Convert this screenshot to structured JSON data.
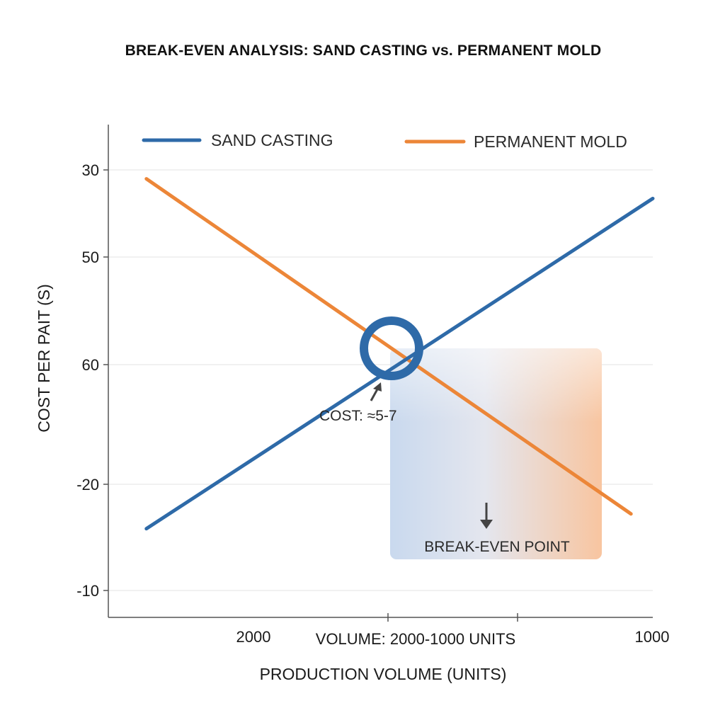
{
  "chart_data": {
    "type": "line",
    "title": "BREAK-EVEN ANALYSIS: SAND CASTING vs. PERMANENT MOLD",
    "xlabel": "PRODUCTION VOLUME (UNITS)",
    "ylabel": "COST PER PAIT (S)",
    "y_tick_labels": [
      "30",
      "50",
      "60",
      "-20",
      "-10"
    ],
    "x_tick_labels": [
      "2000",
      "1000"
    ],
    "x_center_label": "VOLUME: 2000-1000 UNITS",
    "grid": true,
    "legend_position": "top",
    "series": [
      {
        "name": "SAND CASTING",
        "color": "#2e6aa8",
        "x": [
          0.07,
          1.0
        ],
        "y": [
          0.18,
          0.85
        ]
      },
      {
        "name": "PERMANENT MOLD",
        "color": "#ec8638",
        "x": [
          0.07,
          0.96
        ],
        "y": [
          0.89,
          0.21
        ]
      }
    ],
    "break_even": {
      "marker_color": "#2e6aa8",
      "cost_label": "COST: ≈5-7",
      "region_label": "BREAK-EVEN POINT"
    }
  }
}
